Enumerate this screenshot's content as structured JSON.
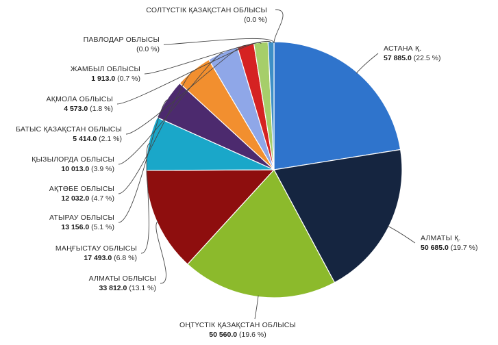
{
  "chart_data": {
    "type": "pie",
    "start_angle_deg": 0,
    "direction": "clockwise",
    "slices": [
      {
        "name": "АСТАНА Қ.",
        "value_label": "57 885.0",
        "pct_label": "(22.5 %)",
        "value": 57885.0,
        "percent": 22.5,
        "color": "#2f74cc"
      },
      {
        "name": "АЛМАТЫ Қ.",
        "value_label": "50 685.0",
        "pct_label": "(19.7 %)",
        "value": 50685.0,
        "percent": 19.7,
        "color": "#152540"
      },
      {
        "name": "ОҢТҮСТІК ҚАЗАҚСТАН ОБЛЫСЫ",
        "value_label": "50 560.0",
        "pct_label": "(19.6 %)",
        "value": 50560.0,
        "percent": 19.6,
        "color": "#8cba2c"
      },
      {
        "name": "АЛМАТЫ ОБЛЫСЫ",
        "value_label": "33 812.0",
        "pct_label": "(13.1 %)",
        "value": 33812.0,
        "percent": 13.1,
        "color": "#8e0e0e"
      },
      {
        "name": "МАҢҒЫСТАУ ОБЛЫСЫ",
        "value_label": "17 493.0",
        "pct_label": "(6.8 %)",
        "value": 17493.0,
        "percent": 6.8,
        "color": "#1aa7c9"
      },
      {
        "name": "АТЫРАУ ОБЛЫСЫ",
        "value_label": "13 156.0",
        "pct_label": "(5.1 %)",
        "value": 13156.0,
        "percent": 5.1,
        "color": "#4c2a6e"
      },
      {
        "name": "АҚТӨБЕ ОБЛЫСЫ",
        "value_label": "12 032.0",
        "pct_label": "(4.7 %)",
        "value": 12032.0,
        "percent": 4.7,
        "color": "#f28f2f"
      },
      {
        "name": "ҚЫЗЫЛОРДА ОБЛЫСЫ",
        "value_label": "10 013.0",
        "pct_label": "(3.9 %)",
        "value": 10013.0,
        "percent": 3.9,
        "color": "#8fa7e8"
      },
      {
        "name": "БАТЫС ҚАЗАҚСТАН ОБЛЫСЫ",
        "value_label": "5 414.0",
        "pct_label": "(2.1 %)",
        "value": 5414.0,
        "percent": 2.1,
        "color": "#d52222"
      },
      {
        "name": "АҚМОЛА ОБЛЫСЫ",
        "value_label": "4 573.0",
        "pct_label": "(1.8 %)",
        "value": 4573.0,
        "percent": 1.8,
        "color": "#a6ce6a"
      },
      {
        "name": "ЖАМБЫЛ ОБЛЫСЫ",
        "value_label": "1 913.0",
        "pct_label": "(0.7 %)",
        "value": 1913.0,
        "percent": 0.7,
        "color": "#3e8fc6"
      },
      {
        "name": "ПАВЛОДАР ОБЛЫСЫ",
        "value_label": "",
        "pct_label": "(0.0 %)",
        "value": 0.0,
        "percent": 0.0,
        "color": "#5a5a5a"
      },
      {
        "name": "СОЛТҮСТІК ҚАЗАҚСТАН ОБЛЫСЫ",
        "value_label": "",
        "pct_label": "(0.0 %)",
        "value": 0.0,
        "percent": 0.0,
        "color": "#5a5a5a"
      }
    ]
  }
}
